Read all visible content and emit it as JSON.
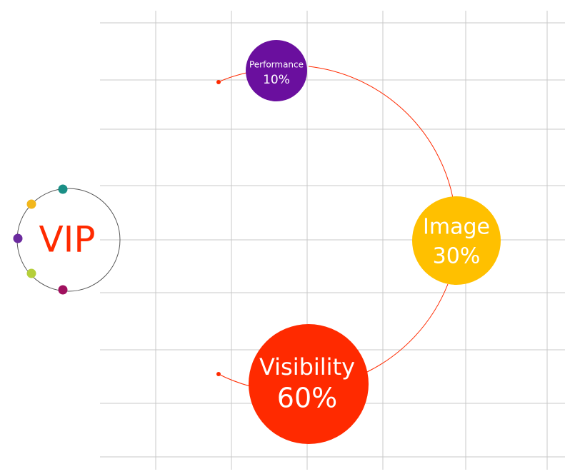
{
  "logo": {
    "text": "VIP"
  },
  "nodes": [
    {
      "label": "Performance",
      "value": "10%"
    },
    {
      "label": "Image",
      "value": "30%"
    },
    {
      "label": "Visibility",
      "value": "60%"
    }
  ]
}
